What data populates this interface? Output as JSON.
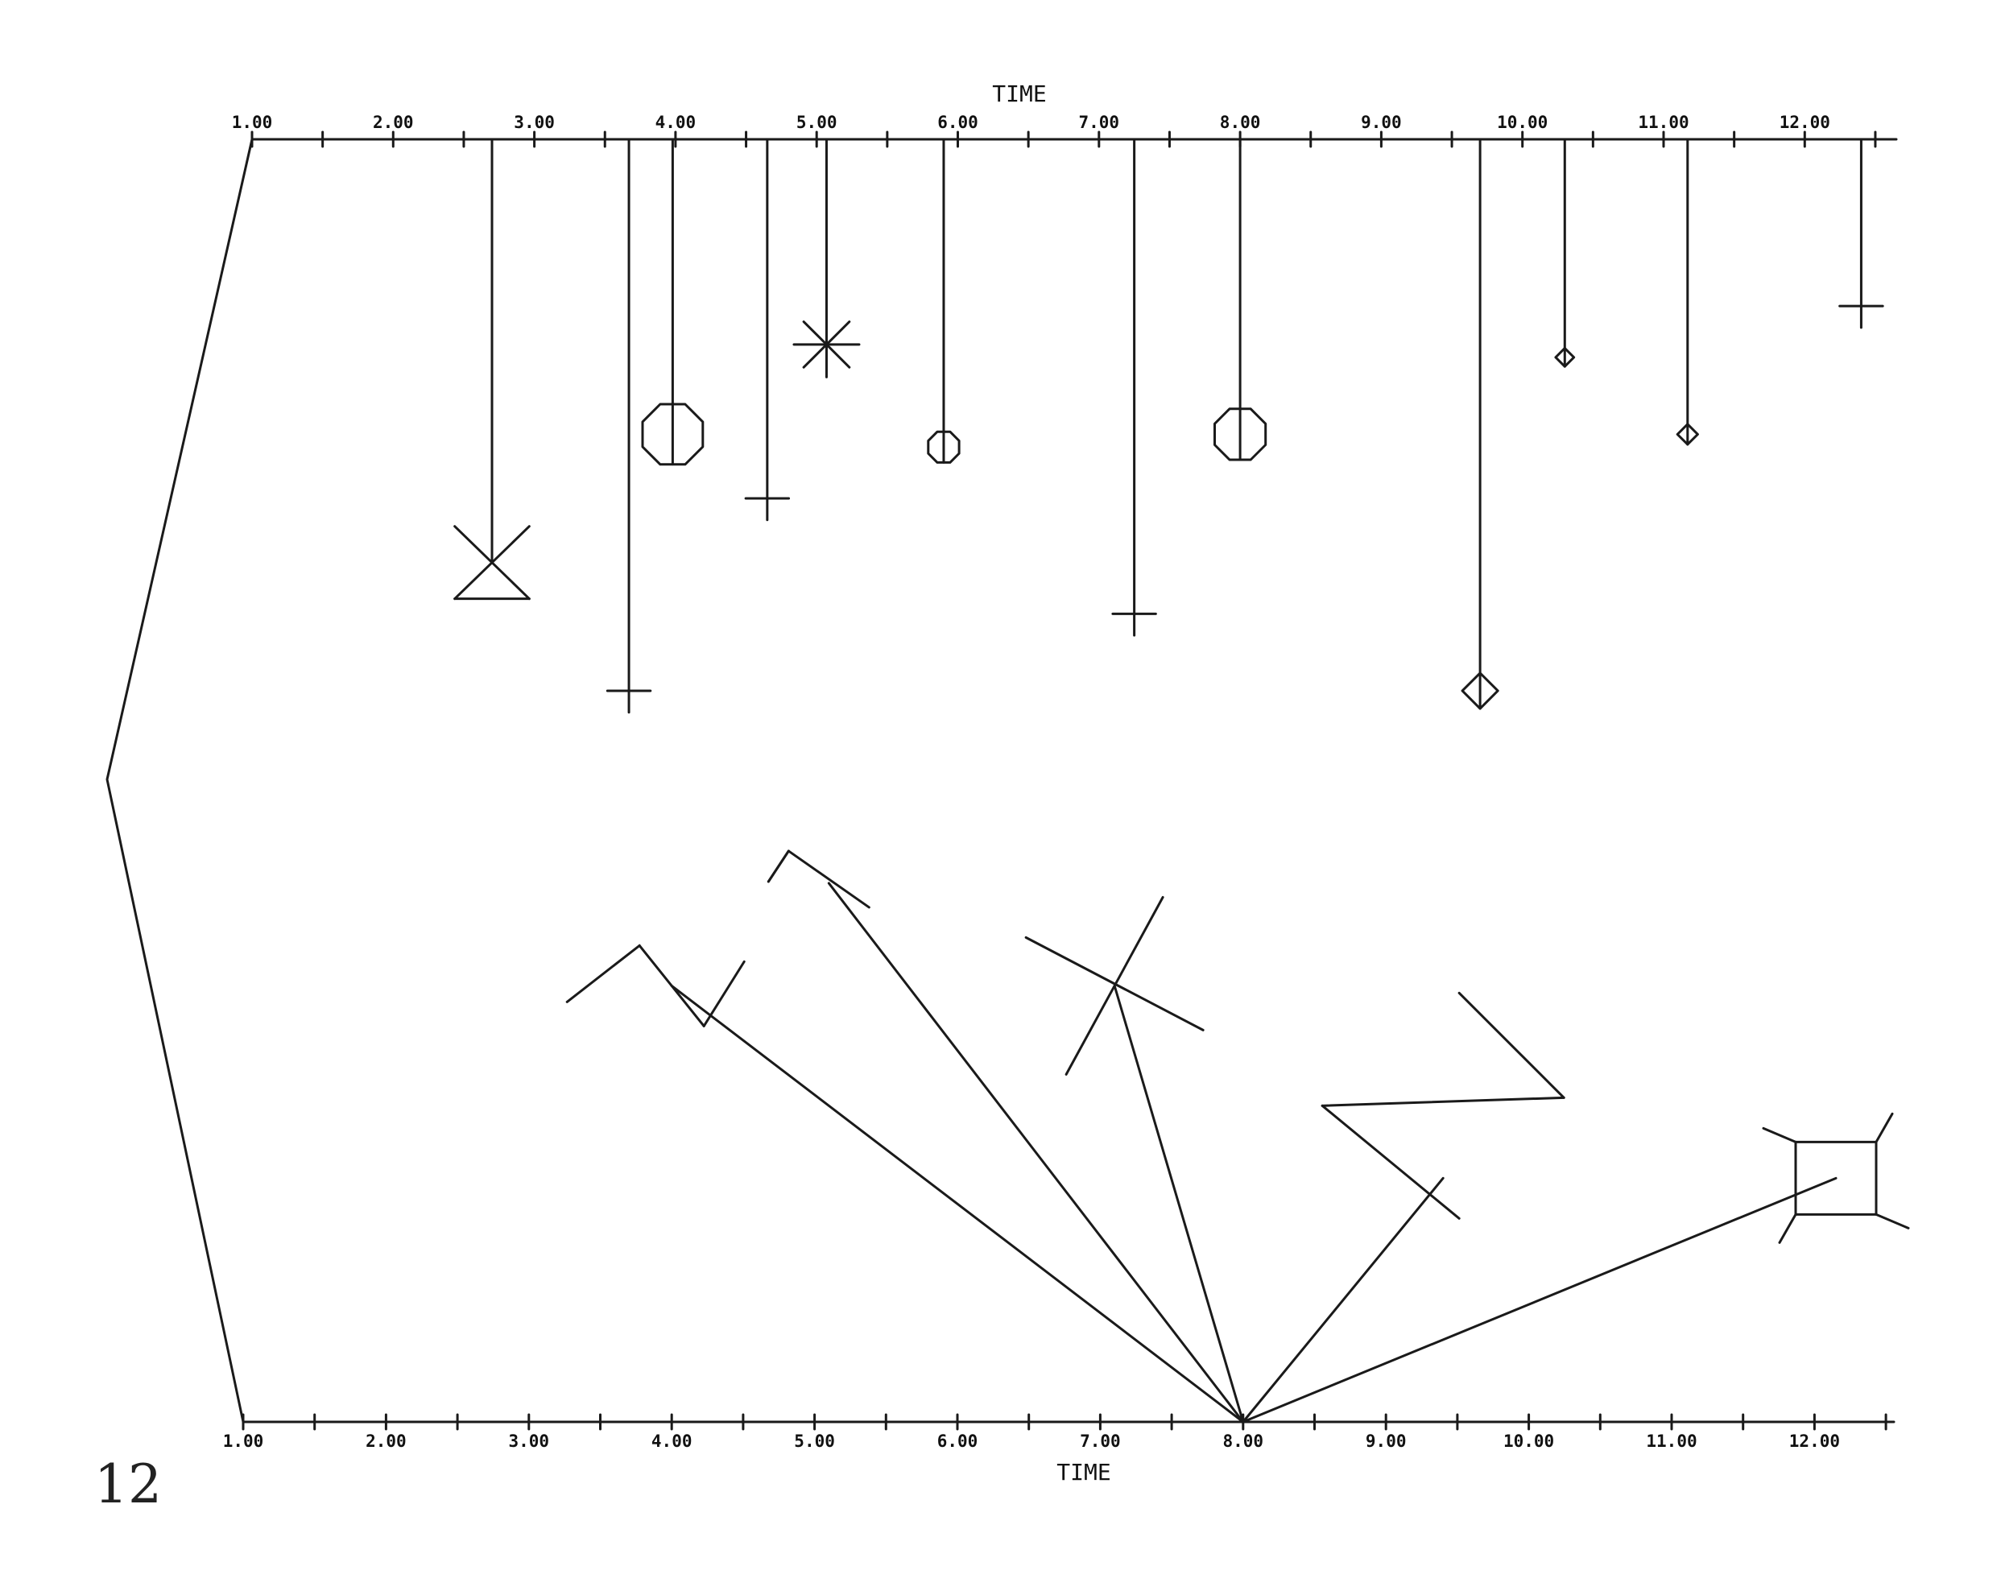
{
  "page_number": "12",
  "chart_data": {
    "type": "other",
    "description_note": "",
    "top_axis": {
      "label": "TIME",
      "range": [
        1.0,
        12.6
      ],
      "ticks": [
        "1.00",
        "2.00",
        "3.00",
        "4.00",
        "5.00",
        "6.00",
        "7.00",
        "8.00",
        "9.00",
        "10.00",
        "11.00",
        "12.00"
      ]
    },
    "bottom_axis": {
      "label": "TIME",
      "range": [
        1.0,
        12.6
      ],
      "ticks": [
        "1.00",
        "2.00",
        "3.00",
        "4.00",
        "5.00",
        "6.00",
        "7.00",
        "8.00",
        "9.00",
        "10.00",
        "11.00",
        "12.00"
      ]
    },
    "stalk_glyphs": [
      {
        "time": 2.7,
        "depth": 0.33,
        "glyph": "hourglass-x",
        "size": 0.35
      },
      {
        "time": 3.67,
        "depth": 0.43,
        "glyph": "plus",
        "size": 0.3
      },
      {
        "time": 3.98,
        "depth": 0.23,
        "glyph": "octagon",
        "size": 0.45
      },
      {
        "time": 4.65,
        "depth": 0.28,
        "glyph": "plus",
        "size": 0.3
      },
      {
        "time": 5.07,
        "depth": 0.16,
        "glyph": "asterisk",
        "size": 0.25
      },
      {
        "time": 5.9,
        "depth": 0.24,
        "glyph": "octagon",
        "size": 0.23
      },
      {
        "time": 7.25,
        "depth": 0.37,
        "glyph": "plus",
        "size": 0.3
      },
      {
        "time": 8.0,
        "depth": 0.23,
        "glyph": "octagon",
        "size": 0.38
      },
      {
        "time": 9.7,
        "depth": 0.43,
        "glyph": "diamond",
        "size": 0.35
      },
      {
        "time": 10.3,
        "depth": 0.17,
        "glyph": "diamond",
        "size": 0.18
      },
      {
        "time": 11.17,
        "depth": 0.23,
        "glyph": "diamond",
        "size": 0.2
      },
      {
        "time": 12.4,
        "depth": 0.13,
        "glyph": "plus",
        "size": 0.3
      }
    ],
    "fan_glyphs": [
      {
        "glyph": "zigzag-large",
        "x": 4.0,
        "height": 0.34
      },
      {
        "glyph": "zigzag-small",
        "x": 5.1,
        "height": 0.42
      },
      {
        "glyph": "cross",
        "x": 7.1,
        "height": 0.34
      },
      {
        "glyph": "zigzag-right",
        "x": 9.4,
        "height": 0.19
      },
      {
        "glyph": "box-whiskers",
        "x": 12.15,
        "height": 0.19
      }
    ],
    "fan_origin_time": 8.0
  }
}
